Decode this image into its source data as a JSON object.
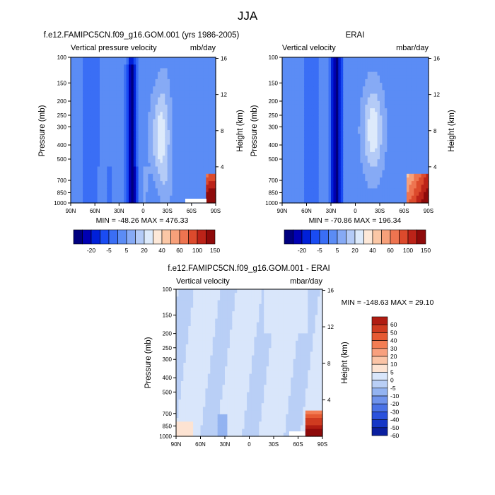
{
  "page": {
    "title": "JJA"
  },
  "colors": {
    "model_levels": [
      "#00007f",
      "#0000b3",
      "#0020d9",
      "#1a4cf2",
      "#3a6ef5",
      "#5b8cf5",
      "#86aaf5",
      "#b4cbf7",
      "#ddeafb",
      "#fde8d8",
      "#fbc7a6",
      "#f7a07a",
      "#ee7450",
      "#dc4a2c",
      "#bc2318",
      "#8e0a0a"
    ],
    "diff_levels": [
      "#8e0a0a",
      "#b01c12",
      "#cf3b20",
      "#e65a33",
      "#f37d54",
      "#f8a07e",
      "#fbc4a6",
      "#fde3d2",
      "#d9e6fb",
      "#b9cff6",
      "#93b3f1",
      "#6f93ec",
      "#4a72e6",
      "#2a51dc",
      "#1537c6",
      "#0a1f9f",
      "#00106e"
    ]
  },
  "chart_data": [
    {
      "type": "heatmap",
      "name": "panel-model",
      "title": "f.e12.FAMIPC5CN.f09_g16.GOM.001 (yrs 1986-2005)",
      "left_label": "Vertical pressure velocity",
      "right_label": "mb/day",
      "ylabel": "Pressure (mb)",
      "ylabel_right": "Height (km)",
      "x_ticks": [
        "90N",
        "60N",
        "30N",
        "0",
        "30S",
        "60S",
        "90S"
      ],
      "x_tick_values": [
        90,
        60,
        30,
        0,
        -30,
        -60,
        -90
      ],
      "y_ticks": [
        "100",
        "150",
        "200",
        "250",
        "300",
        "400",
        "500",
        "700",
        "850",
        "1000"
      ],
      "y_tick_values": [
        100,
        150,
        200,
        250,
        300,
        400,
        500,
        700,
        850,
        1000
      ],
      "y_ticks_right": [
        "16",
        "12",
        "8",
        "4"
      ],
      "y_tick_right_values": [
        16,
        12,
        8,
        4
      ],
      "xlim": [
        90,
        -90
      ],
      "ylim": [
        100,
        1000
      ],
      "yscale": "log",
      "minmax": "MIN = -48.26  MAX = 476.33",
      "colorbar_labels": [
        "-20",
        "-5",
        "5",
        "20",
        "40",
        "60",
        "100",
        "150"
      ],
      "colorbar_label_slots": [
        1,
        3,
        5,
        7,
        9,
        11,
        13,
        15
      ]
    },
    {
      "type": "heatmap",
      "name": "panel-erai",
      "title": "ERAI",
      "left_label": "Vertical velocity",
      "right_label": "mbar/day",
      "ylabel": "Pressure (mb)",
      "ylabel_right": "Height (km)",
      "x_ticks": [
        "90N",
        "60N",
        "30N",
        "0",
        "30S",
        "60S",
        "90S"
      ],
      "x_tick_values": [
        90,
        60,
        30,
        0,
        -30,
        -60,
        -90
      ],
      "y_ticks": [
        "100",
        "150",
        "200",
        "250",
        "300",
        "400",
        "500",
        "700",
        "850",
        "1000"
      ],
      "y_tick_values": [
        100,
        150,
        200,
        250,
        300,
        400,
        500,
        700,
        850,
        1000
      ],
      "y_ticks_right": [
        "16",
        "12",
        "8",
        "4"
      ],
      "y_tick_right_values": [
        16,
        12,
        8,
        4
      ],
      "xlim": [
        90,
        -90
      ],
      "ylim": [
        100,
        1000
      ],
      "yscale": "log",
      "minmax": "MIN = -70.86  MAX = 196.34",
      "colorbar_labels": [
        "-20",
        "-5",
        "5",
        "20",
        "40",
        "60",
        "100",
        "150"
      ],
      "colorbar_label_slots": [
        1,
        3,
        5,
        7,
        9,
        11,
        13,
        15
      ]
    },
    {
      "type": "heatmap",
      "name": "panel-diff",
      "title": "f.e12.FAMIPC5CN.f09_g16.GOM.001 - ERAI",
      "left_label": "Vertical velocity",
      "right_label": "mbar/day",
      "ylabel": "Pressure (mb)",
      "ylabel_right": "Height (km)",
      "x_ticks": [
        "90N",
        "60N",
        "30N",
        "0",
        "30S",
        "60S",
        "90S"
      ],
      "x_tick_values": [
        90,
        60,
        30,
        0,
        -30,
        -60,
        -90
      ],
      "y_ticks": [
        "100",
        "150",
        "200",
        "250",
        "300",
        "400",
        "500",
        "700",
        "850",
        "1000"
      ],
      "y_tick_values": [
        100,
        150,
        200,
        250,
        300,
        400,
        500,
        700,
        850,
        1000
      ],
      "y_ticks_right": [
        "16",
        "12",
        "8",
        "4"
      ],
      "y_tick_right_values": [
        16,
        12,
        8,
        4
      ],
      "xlim": [
        90,
        -90
      ],
      "ylim": [
        100,
        1000
      ],
      "yscale": "log",
      "minmax": "MIN = -148.63  MAX =  29.10",
      "colorbar_labels": [
        "60",
        "50",
        "40",
        "30",
        "20",
        "10",
        "5",
        "0",
        "-5",
        "-10",
        "-20",
        "-30",
        "-40",
        "-50",
        "-60"
      ]
    }
  ]
}
